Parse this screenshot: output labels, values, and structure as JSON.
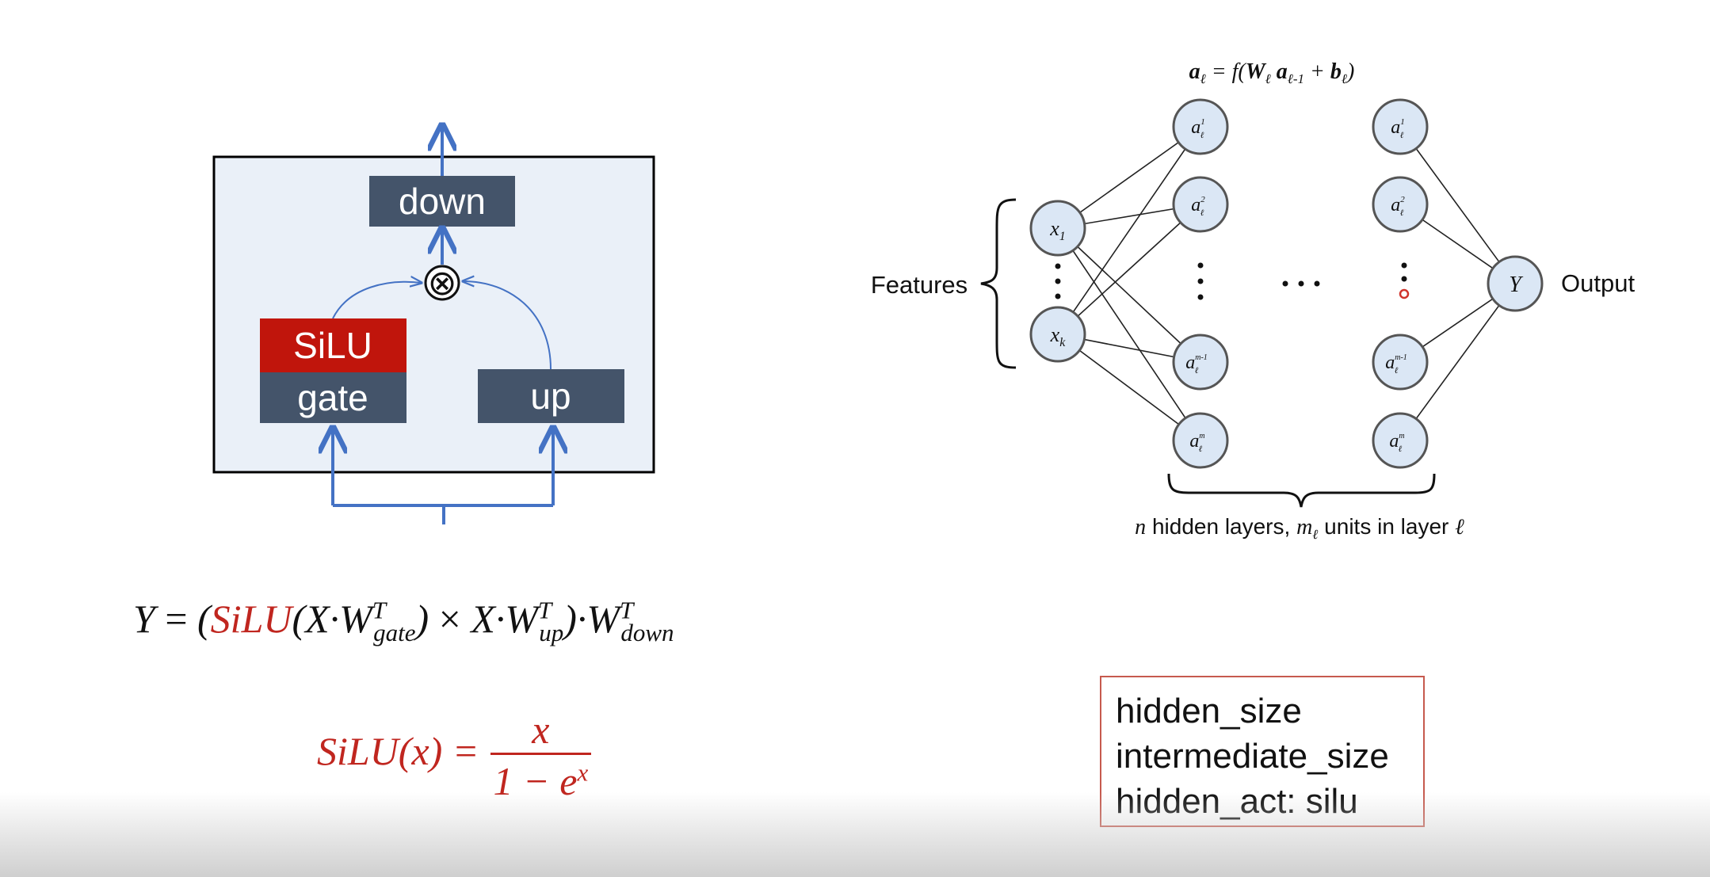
{
  "ffn_block": {
    "down_label": "down",
    "silu_label": "SiLU",
    "gate_label": "gate",
    "up_label": "up",
    "multiply_symbol": "⊗",
    "colors": {
      "box_fill": "#eaf0f8",
      "layer_fill": "#44546a",
      "silu_fill": "#c0150c",
      "arrow": "#4472c4"
    }
  },
  "mlp_network": {
    "top_formula": "a_ℓ = f(W_ℓ a_ℓ-1 + b_ℓ)",
    "features_label": "Features",
    "output_label": "Output",
    "input_nodes": [
      "x_1",
      "x_k"
    ],
    "hidden_nodes": [
      "a_ℓ^1",
      "a_ℓ^2",
      "a_ℓ^(m_ℓ-1)",
      "a_ℓ^(m_ℓ)"
    ],
    "output_node": "Y",
    "bottom_caption": "n hidden layers, m_ℓ units in layer ℓ",
    "colors": {
      "node_fill": "#dbe7f5",
      "node_stroke": "#555555"
    }
  },
  "equations": {
    "y_equation": "Y = (SiLU(X·W_gate^T) × X·W_up^T)·W_down^T",
    "silu_equation": "SiLU(x) = x / (1 − e^x)"
  },
  "config_box": {
    "lines": [
      "hidden_size",
      "intermediate_size",
      "hidden_act: silu"
    ]
  }
}
